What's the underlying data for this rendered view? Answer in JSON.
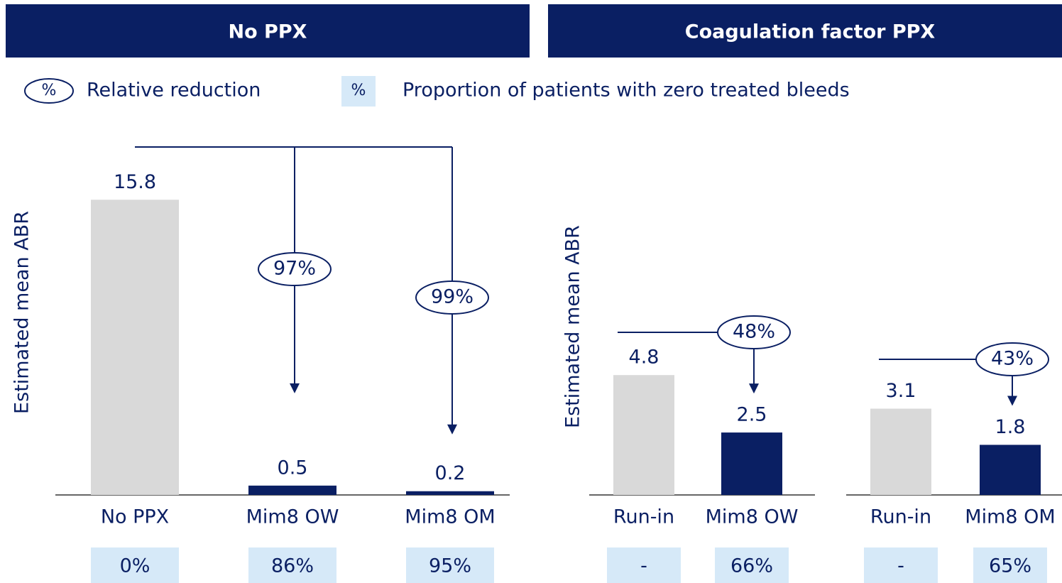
{
  "headers": [
    "No PPX",
    "Coagulation factor PPX"
  ],
  "legend": {
    "symbol": "%",
    "reduction": "Relative reduction",
    "zero_bleeds": "Proportion of patients with zero treated bleeds"
  },
  "chart_data": [
    {
      "type": "bar",
      "ylabel": "Estimated mean ABR",
      "categories": [
        "No PPX",
        "Mim8 OW",
        "Mim8 OM"
      ],
      "values": [
        15.8,
        0.5,
        0.2
      ],
      "colors": [
        "#d9d9d9",
        "#0a1f63",
        "#0a1f63"
      ],
      "ylim": [
        0,
        16
      ],
      "reductions": [
        null,
        {
          "value": 97,
          "label": "97%"
        },
        {
          "value": 99,
          "label": "99%"
        }
      ],
      "zero_bleeds": {
        "values": [
          0,
          86,
          95
        ],
        "value_labels": [
          "0%",
          "86%",
          "95%"
        ]
      }
    },
    {
      "type": "bar",
      "ylabel": "Estimated mean ABR",
      "categories": [
        "Run-in",
        "Mim8 OW"
      ],
      "values": [
        4.8,
        2.5
      ],
      "colors": [
        "#d9d9d9",
        "#0a1f63"
      ],
      "ylim": [
        0,
        6
      ],
      "reductions": [
        null,
        {
          "value": 48,
          "label": "48%"
        }
      ],
      "zero_bleeds": {
        "values": [
          null,
          66
        ],
        "value_labels": [
          "-",
          "66%"
        ]
      }
    },
    {
      "type": "bar",
      "categories": [
        "Run-in",
        "Mim8 OM"
      ],
      "values": [
        3.1,
        1.8
      ],
      "colors": [
        "#d9d9d9",
        "#0a1f63"
      ],
      "ylim": [
        0,
        5
      ],
      "reductions": [
        null,
        {
          "value": 43,
          "label": "43%"
        }
      ],
      "zero_bleeds": {
        "values": [
          null,
          65
        ],
        "value_labels": [
          "-",
          "65%"
        ]
      }
    }
  ]
}
